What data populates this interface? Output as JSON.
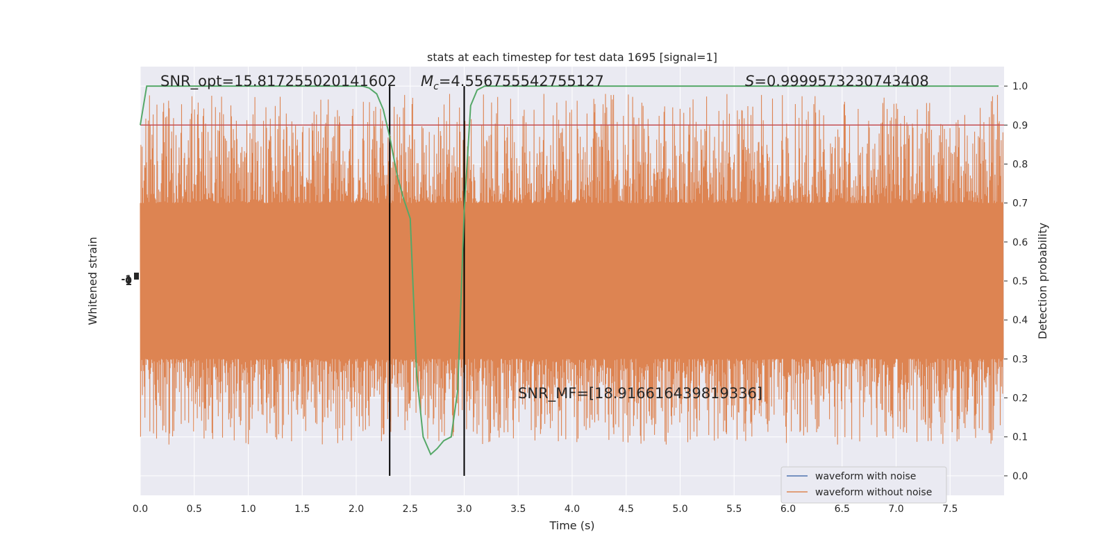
{
  "chart_data": {
    "type": "line",
    "title": "stats at each timestep for test data 1695 [signal=1]",
    "xlabel": "Time (s)",
    "ylabel_left": "Whitened strain",
    "ylabel_right": "Detection probability",
    "xlim": [
      0.0,
      8.0
    ],
    "ylim_right": [
      -0.05,
      1.05
    ],
    "x_ticks": [
      "0.0",
      "0.5",
      "1.0",
      "1.5",
      "2.0",
      "2.5",
      "3.0",
      "3.5",
      "4.0",
      "4.5",
      "5.0",
      "5.5",
      "6.0",
      "6.5",
      "7.0",
      "7.5"
    ],
    "y_ticks_right": [
      "0.0",
      "0.1",
      "0.2",
      "0.3",
      "0.4",
      "0.5",
      "0.6",
      "0.7",
      "0.8",
      "0.9",
      "1.0"
    ],
    "left_tick_labels": [
      "-1",
      "0",
      "1"
    ],
    "grid": true,
    "legend_position": "lower-right",
    "annotations": {
      "snr_opt": "SNR_opt=15.817255020141602",
      "mc_symbol": "M",
      "mc_sub": "c",
      "mc_value": "=4.556755542755127",
      "s_symbol": "S",
      "s_value": "=0.9999573230743408",
      "snr_mf": "SNR_MF=[18.916616439819336]"
    },
    "series": [
      {
        "name": "waveform with noise",
        "color": "#4c72b0",
        "kind": "strain"
      },
      {
        "name": "waveform without noise",
        "color": "#dd8452",
        "kind": "strain",
        "amplitude_band": [
          0.3,
          0.7
        ]
      }
    ],
    "detection_probability": {
      "color": "#55a868",
      "x": [
        0.0,
        0.06,
        0.12,
        0.19,
        0.25,
        0.31,
        0.38,
        0.44,
        0.5,
        0.56,
        0.62,
        0.69,
        0.75,
        0.81,
        0.88,
        0.94,
        1.0,
        1.06,
        1.12,
        1.19,
        1.25,
        1.31,
        1.38,
        1.44,
        1.5,
        1.56,
        1.62,
        1.69,
        1.75,
        1.81,
        1.88,
        1.94,
        2.0,
        2.06,
        2.12,
        2.19,
        2.25,
        2.31,
        2.38,
        2.44,
        2.5,
        2.56,
        2.62,
        2.69,
        2.75,
        2.81,
        2.88,
        2.94,
        3.0,
        3.06,
        3.12,
        3.19,
        3.25,
        3.31,
        3.5,
        4.0,
        4.5,
        5.0,
        5.5,
        6.0,
        6.5,
        7.0,
        7.5,
        7.95
      ],
      "y": [
        0.9,
        1.0,
        1.0,
        1.0,
        1.0,
        1.0,
        1.0,
        1.0,
        1.0,
        1.0,
        1.0,
        1.0,
        1.0,
        1.0,
        1.0,
        1.0,
        1.0,
        1.0,
        1.0,
        1.0,
        1.0,
        1.0,
        1.0,
        1.0,
        1.0,
        1.0,
        1.0,
        1.0,
        1.0,
        1.0,
        1.0,
        1.0,
        1.0,
        1.0,
        0.995,
        0.98,
        0.94,
        0.87,
        0.77,
        0.71,
        0.66,
        0.26,
        0.1,
        0.055,
        0.07,
        0.09,
        0.1,
        0.22,
        0.68,
        0.95,
        0.99,
        1.0,
        1.0,
        1.0,
        1.0,
        1.0,
        1.0,
        1.0,
        1.0,
        1.0,
        1.0,
        1.0,
        1.0,
        1.0
      ]
    },
    "threshold": {
      "y": 0.9,
      "color": "#c44e52"
    },
    "vlines": {
      "x": [
        2.31,
        3.0
      ],
      "y_range": [
        0.0,
        1.0
      ],
      "color": "#000000"
    }
  }
}
